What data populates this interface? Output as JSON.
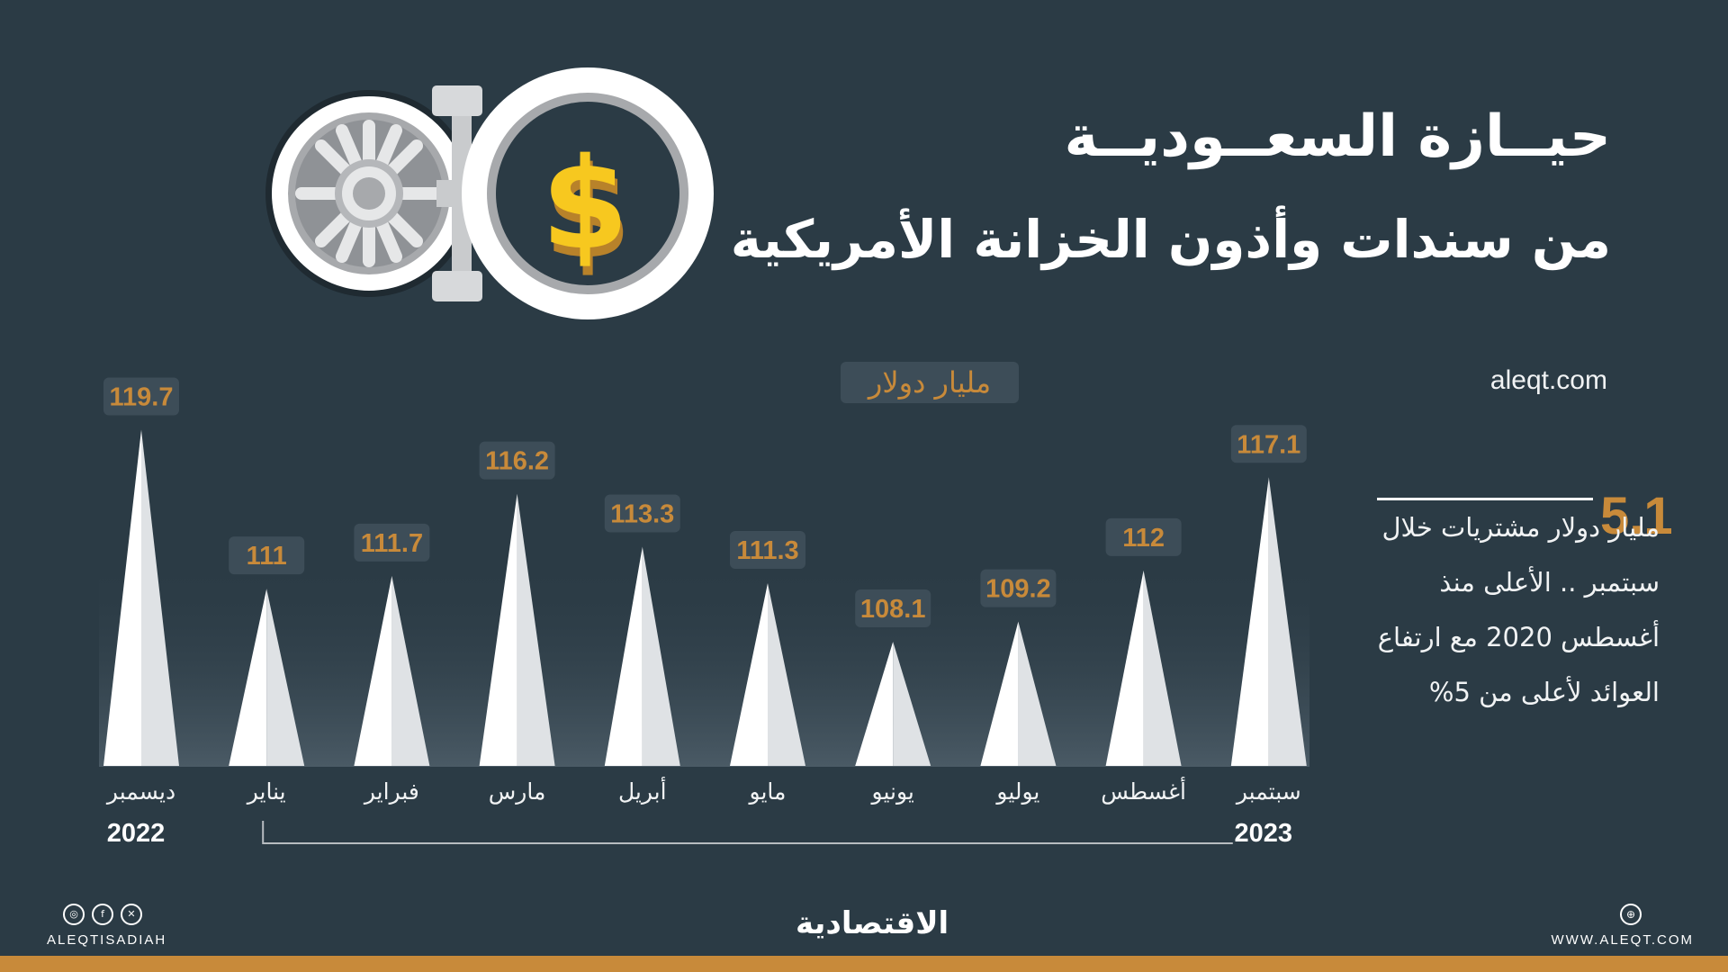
{
  "header": {
    "title_line1": "حيــازة السعــوديــة",
    "title_line2": "من سندات وأذون الخزانة الأمريكية",
    "site": "aleqt.com"
  },
  "unit_label": "مليار دولار",
  "stat": {
    "value": "5.1",
    "text": "مليار دولار مشتريات خلال سبتمبر .. الأعلى منذ أغسطس 2020 مع ارتفاع العوائد لأعلى من 5%"
  },
  "chart_data": {
    "type": "bar",
    "categories": [
      "ديسمبر",
      "يناير",
      "فبراير",
      "مارس",
      "أبريل",
      "مايو",
      "يونيو",
      "يوليو",
      "أغسطس",
      "سبتمبر"
    ],
    "values": [
      119.7,
      111,
      111.7,
      116.2,
      113.3,
      111.3,
      108.1,
      109.2,
      112,
      117.1
    ],
    "value_labels": [
      "119.7",
      "111",
      "111.7",
      "116.2",
      "113.3",
      "111.3",
      "108.1",
      "109.2",
      "112",
      "117.1"
    ],
    "year_labels": [
      {
        "label": "2022",
        "category_index": 0
      },
      {
        "label": "2023",
        "category_index": 9
      }
    ],
    "ylabel": "مليار دولار",
    "colors": {
      "spike_light": "#ffffff",
      "spike_shade": "#dfe2e5",
      "label_bg": "#3d4d58",
      "label_text": "#c88a3a"
    }
  },
  "footer": {
    "social_icons": [
      "instagram-icon",
      "facebook-icon",
      "x-icon"
    ],
    "handle": "ALEQTISADIAH",
    "brand": "الاقتصادية",
    "website": "WWW.ALEQT.COM"
  },
  "colors": {
    "background": "#2b3b45",
    "accent": "#c88a3a"
  }
}
